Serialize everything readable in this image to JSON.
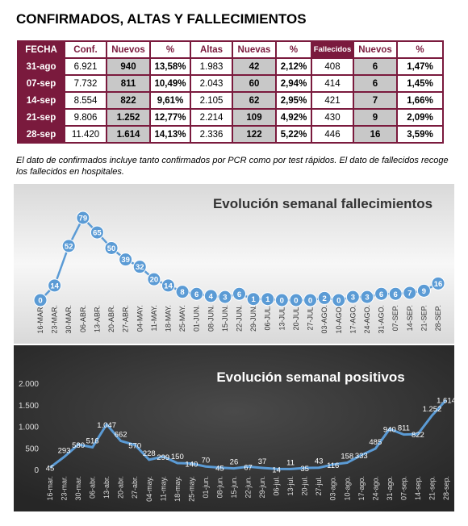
{
  "title": "CONFIRMADOS, ALTAS Y FALLECIMIENTOS",
  "table": {
    "header": [
      "FECHA",
      "Conf.",
      "Nuevos",
      "%",
      "Altas",
      "Nuevas",
      "%",
      "Fallecidos",
      "Nuevos",
      "%"
    ],
    "rows": [
      [
        "31-ago",
        "6.921",
        "940",
        "13,58%",
        "1.983",
        "42",
        "2,12%",
        "408",
        "6",
        "1,47%"
      ],
      [
        "07-sep",
        "7.732",
        "811",
        "10,49%",
        "2.043",
        "60",
        "2,94%",
        "414",
        "6",
        "1,45%"
      ],
      [
        "14-sep",
        "8.554",
        "822",
        "9,61%",
        "2.105",
        "62",
        "2,95%",
        "421",
        "7",
        "1,66%"
      ],
      [
        "21-sep",
        "9.806",
        "1.252",
        "12,77%",
        "2.214",
        "109",
        "4,92%",
        "430",
        "9",
        "2,09%"
      ],
      [
        "28-sep",
        "11.420",
        "1.614",
        "14,13%",
        "2.336",
        "122",
        "5,22%",
        "446",
        "16",
        "3,59%"
      ]
    ]
  },
  "note": "El dato de confirmados incluye tanto confirmados por PCR como por test rápidos. El dato de fallecidos recoge los fallecidos en hospitales.",
  "chart_data": [
    {
      "type": "line",
      "title": "Evolución semanal fallecimientos",
      "color": "#5b9bd5",
      "markers": true,
      "categories": [
        "16-MAR.",
        "23-MAR.",
        "30-MAR.",
        "06-ABR.",
        "13-ABR.",
        "20-ABR.",
        "27-ABR.",
        "04-MAY.",
        "11-MAY.",
        "18-MAY.",
        "25-MAY.",
        "01-JUN.",
        "08-JUN.",
        "15-JUN.",
        "22-JUN.",
        "29-JUN.",
        "06-JUL.",
        "13-JUL.",
        "20-JUL.",
        "27-JUL.",
        "03-AGO.",
        "10-AGO.",
        "17-AGO.",
        "24-AGO.",
        "31-AGO.",
        "07-SEP.",
        "14-SEP.",
        "21-SEP.",
        "28-SEP."
      ],
      "values": [
        0,
        14,
        52,
        79,
        65,
        50,
        39,
        32,
        20,
        14,
        8,
        6,
        4,
        3,
        6,
        1,
        1,
        0,
        0,
        0,
        2,
        0,
        3,
        3,
        6,
        6,
        7,
        9,
        16
      ]
    },
    {
      "type": "line",
      "title": "Evolución semanal positivos",
      "color": "#5b9bd5",
      "markers": false,
      "categories": [
        "16-mar.",
        "23-mar.",
        "30-mar.",
        "06-abr.",
        "13-abr.",
        "20-abr.",
        "27-abr.",
        "04-may.",
        "11-may.",
        "18-may.",
        "25-may.",
        "01-jun.",
        "08-jun.",
        "15-jun.",
        "22-jun.",
        "29-jun.",
        "06-jul.",
        "13-jul.",
        "20-jul.",
        "27-jul.",
        "03-ago.",
        "10-ago.",
        "17-ago.",
        "24-ago.",
        "31-ago.",
        "07-sep.",
        "14-sep.",
        "21-sep.",
        "28-sep."
      ],
      "values": [
        45,
        293,
        580,
        516,
        1047,
        662,
        570,
        228,
        299,
        150,
        140,
        70,
        45,
        26,
        67,
        37,
        14,
        11,
        35,
        43,
        116,
        158,
        333,
        485,
        940,
        811,
        822,
        1252,
        1614
      ],
      "value_labels": [
        "45",
        "293",
        "580",
        "516",
        "1.047",
        "662",
        "570",
        "228",
        "299",
        "150",
        "140",
        "70",
        "45",
        "26",
        "67",
        "37",
        "14",
        "11",
        "35",
        "43",
        "116",
        "158",
        "333",
        "485",
        "940",
        "811",
        "822",
        "1.252",
        "1.614"
      ],
      "ylim": [
        0,
        2000
      ],
      "yticks": [
        0,
        500,
        {
          "value": 1000,
          "label": "1.000"
        },
        {
          "value": 1500,
          "label": "1.500"
        },
        {
          "value": 2000,
          "label": "2.000"
        }
      ]
    }
  ]
}
